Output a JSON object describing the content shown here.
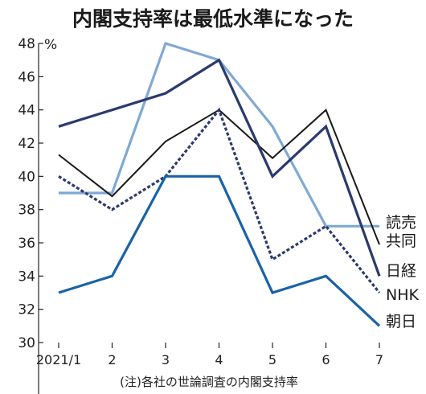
{
  "chart_data": {
    "type": "line",
    "title": "内閣支持率は最低水準になった",
    "unit": "%",
    "note": "(注)各社の世論調査の内閣支持率",
    "categories": [
      "2021/1",
      "2",
      "3",
      "4",
      "5",
      "6",
      "7"
    ],
    "ylim": [
      30,
      48
    ],
    "yticks": [
      "30",
      "32",
      "34",
      "36",
      "38",
      "40",
      "42",
      "44",
      "46",
      "48"
    ],
    "grid": false,
    "legend": "right, labels at line ends",
    "series": [
      {
        "name": "読売",
        "values": [
          39,
          39,
          48,
          47,
          43,
          37,
          37
        ],
        "color": "#7fa9d4",
        "style": "solid"
      },
      {
        "name": "共同",
        "values": [
          41.3,
          38.8,
          42.1,
          44,
          41.1,
          44,
          35.9
        ],
        "color": "#1a1a1a",
        "style": "solid"
      },
      {
        "name": "日経",
        "values": [
          43,
          44,
          45,
          47,
          40,
          43,
          34
        ],
        "color": "#2b3a6e",
        "style": "solid"
      },
      {
        "name": "NHK",
        "values": [
          40,
          38,
          40,
          44,
          35,
          37,
          33
        ],
        "color": "#2b3a6e",
        "style": "dashed"
      },
      {
        "name": "朝日",
        "values": [
          33,
          34,
          40,
          40,
          33,
          34,
          31
        ],
        "color": "#1a62a8",
        "style": "solid"
      }
    ]
  }
}
